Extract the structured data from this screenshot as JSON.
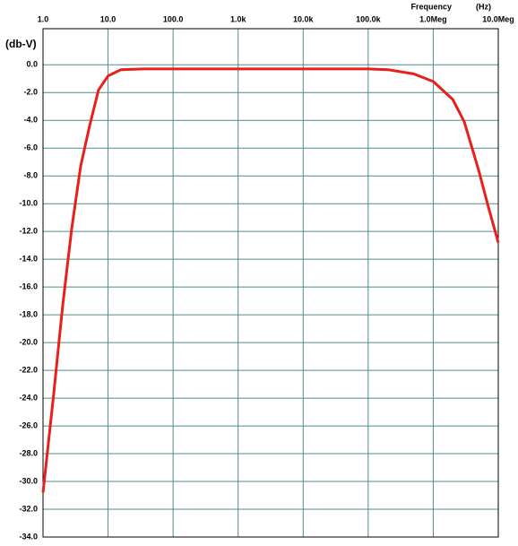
{
  "chart_data": {
    "type": "line",
    "x_label": "Frequency",
    "x_unit": "(Hz)",
    "y_label": "(db-V)",
    "xscale": "log",
    "xlim": [
      1,
      10000000
    ],
    "xticks": [
      {
        "value": 1,
        "label": "1.0"
      },
      {
        "value": 10,
        "label": "10.0"
      },
      {
        "value": 100,
        "label": "100.0"
      },
      {
        "value": 1000,
        "label": "1.0k"
      },
      {
        "value": 10000,
        "label": "10.0k"
      },
      {
        "value": 100000,
        "label": "100.0k"
      },
      {
        "value": 1000000,
        "label": "1.0Meg"
      },
      {
        "value": 10000000,
        "label": "10.0Meg"
      }
    ],
    "ylim": [
      -34,
      2.6
    ],
    "yticks": [
      {
        "value": 0,
        "label": "0.0"
      },
      {
        "value": -2,
        "label": "-2.0"
      },
      {
        "value": -4,
        "label": "-4.0"
      },
      {
        "value": -6,
        "label": "-6.0"
      },
      {
        "value": -8,
        "label": "-8.0"
      },
      {
        "value": -10,
        "label": "-10.0"
      },
      {
        "value": -12,
        "label": "-12.0"
      },
      {
        "value": -14,
        "label": "-14.0"
      },
      {
        "value": -16,
        "label": "-16.0"
      },
      {
        "value": -18,
        "label": "-18.0"
      },
      {
        "value": -20,
        "label": "-20.0"
      },
      {
        "value": -22,
        "label": "-22.0"
      },
      {
        "value": -24,
        "label": "-24.0"
      },
      {
        "value": -26,
        "label": "-26.0"
      },
      {
        "value": -28,
        "label": "-28.0"
      },
      {
        "value": -30,
        "label": "-30.0"
      },
      {
        "value": -32,
        "label": "-32.0"
      },
      {
        "value": -34,
        "label": "-34.0"
      }
    ],
    "grid": true,
    "series": [
      {
        "color": "#e8201c",
        "x": [
          1,
          1.46,
          2.01,
          2.76,
          3.79,
          5.2,
          7.15,
          10,
          15.8,
          35,
          1000,
          100000,
          200000,
          500000,
          1000000,
          2000000,
          3000000,
          5000000,
          7000000,
          10000000
        ],
        "values": [
          -30.8,
          -23.7,
          -17.3,
          -11.8,
          -7.3,
          -4.4,
          -1.8,
          -0.8,
          -0.35,
          -0.3,
          -0.3,
          -0.3,
          -0.35,
          -0.65,
          -1.2,
          -2.5,
          -4.1,
          -7.6,
          -10.2,
          -12.8
        ]
      }
    ]
  }
}
